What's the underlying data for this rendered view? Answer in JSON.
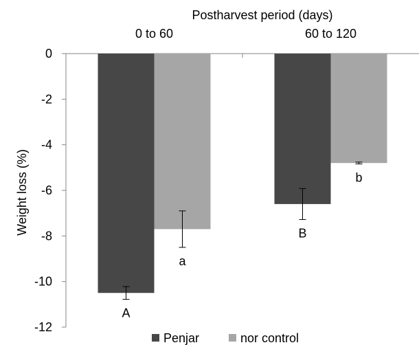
{
  "chart_data": {
    "type": "bar",
    "title": "Postharvest period (days)",
    "xlabel": "Postharvest period (days)",
    "ylabel": "Weight loss  (%)",
    "ylim": [
      -12,
      0
    ],
    "yticks": [
      0,
      -2,
      -4,
      -6,
      -8,
      -10,
      -12
    ],
    "ytick_labels": [
      "0",
      "-2",
      "-4",
      "-6",
      "-8",
      "-10",
      "-12"
    ],
    "categories": [
      "0 to 60",
      "60 to 120"
    ],
    "x_axis_position": "top",
    "legend_position": "bottom",
    "grid": false,
    "series": [
      {
        "name": "Penjar",
        "color": "#474747",
        "values": [
          -10.5,
          -6.6
        ],
        "errors": [
          0.28,
          0.68
        ],
        "labels": [
          "A",
          "B"
        ]
      },
      {
        "name": "nor control",
        "color": "#a6a6a6",
        "values": [
          -7.7,
          -4.8
        ],
        "errors": [
          0.8,
          0.04
        ],
        "labels": [
          "a",
          "b"
        ]
      }
    ]
  }
}
